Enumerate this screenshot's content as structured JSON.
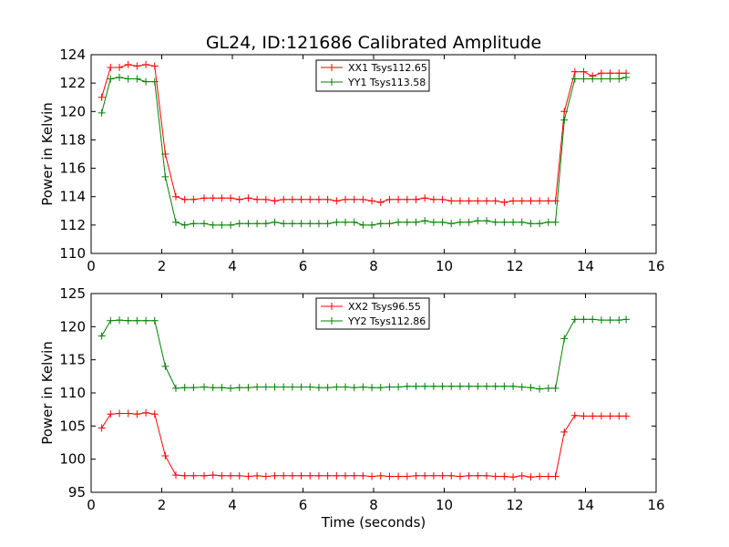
{
  "chart_data": [
    {
      "type": "line",
      "title": "GL24, ID:121686 Calibrated Amplitude",
      "xlabel": "",
      "ylabel": "Power in Kelvin",
      "xlim": [
        0,
        16
      ],
      "ylim": [
        110,
        124
      ],
      "xticks": [
        0,
        2,
        4,
        6,
        8,
        10,
        12,
        14,
        16
      ],
      "yticks": [
        110,
        112,
        114,
        116,
        118,
        120,
        122,
        124
      ],
      "grid": false,
      "legend_position": "top-center",
      "x": [
        0.3,
        0.55,
        0.8,
        1.05,
        1.3,
        1.55,
        1.8,
        2.1,
        2.4,
        2.65,
        2.9,
        3.2,
        3.45,
        3.7,
        3.95,
        4.2,
        4.45,
        4.7,
        4.95,
        5.2,
        5.45,
        5.7,
        5.95,
        6.2,
        6.45,
        6.7,
        6.95,
        7.2,
        7.45,
        7.7,
        7.95,
        8.2,
        8.45,
        8.7,
        8.95,
        9.2,
        9.45,
        9.7,
        9.95,
        10.2,
        10.45,
        10.7,
        10.95,
        11.2,
        11.45,
        11.7,
        11.95,
        12.2,
        12.45,
        12.7,
        12.95,
        13.15,
        13.4,
        13.7,
        13.95,
        14.2,
        14.45,
        14.7,
        14.95,
        15.15
      ],
      "series": [
        {
          "name": "XX1 Tsys112.65",
          "color": "#ff0000",
          "values": [
            121.0,
            123.1,
            123.1,
            123.3,
            123.2,
            123.3,
            123.2,
            117.0,
            114.0,
            113.8,
            113.8,
            113.9,
            113.9,
            113.9,
            113.9,
            113.8,
            113.9,
            113.8,
            113.8,
            113.7,
            113.8,
            113.8,
            113.8,
            113.8,
            113.8,
            113.8,
            113.7,
            113.8,
            113.8,
            113.8,
            113.7,
            113.6,
            113.8,
            113.8,
            113.8,
            113.8,
            113.9,
            113.8,
            113.8,
            113.7,
            113.7,
            113.7,
            113.7,
            113.7,
            113.7,
            113.6,
            113.7,
            113.7,
            113.7,
            113.7,
            113.7,
            113.7,
            120.0,
            122.8,
            122.8,
            122.5,
            122.7,
            122.7,
            122.7,
            122.7
          ]
        },
        {
          "name": "YY1 Tsys113.58",
          "color": "#008000",
          "values": [
            119.9,
            122.3,
            122.4,
            122.3,
            122.3,
            122.1,
            122.1,
            115.4,
            112.2,
            112.0,
            112.1,
            112.1,
            112.0,
            112.0,
            112.0,
            112.1,
            112.1,
            112.1,
            112.1,
            112.2,
            112.1,
            112.1,
            112.1,
            112.1,
            112.1,
            112.1,
            112.2,
            112.2,
            112.2,
            112.0,
            112.0,
            112.1,
            112.1,
            112.2,
            112.2,
            112.2,
            112.3,
            112.2,
            112.2,
            112.1,
            112.2,
            112.2,
            112.3,
            112.3,
            112.2,
            112.2,
            112.2,
            112.2,
            112.1,
            112.1,
            112.2,
            112.2,
            119.4,
            122.3,
            122.3,
            122.3,
            122.3,
            122.3,
            122.3,
            122.4
          ]
        }
      ]
    },
    {
      "type": "line",
      "title": "",
      "xlabel": "Time (seconds)",
      "ylabel": "Power in Kelvin",
      "xlim": [
        0,
        16
      ],
      "ylim": [
        95,
        125
      ],
      "xticks": [
        0,
        2,
        4,
        6,
        8,
        10,
        12,
        14,
        16
      ],
      "yticks": [
        95,
        100,
        105,
        110,
        115,
        120,
        125
      ],
      "grid": false,
      "legend_position": "top-center",
      "x": [
        0.3,
        0.55,
        0.8,
        1.05,
        1.3,
        1.55,
        1.8,
        2.1,
        2.4,
        2.65,
        2.9,
        3.2,
        3.45,
        3.7,
        3.95,
        4.2,
        4.45,
        4.7,
        4.95,
        5.2,
        5.45,
        5.7,
        5.95,
        6.2,
        6.45,
        6.7,
        6.95,
        7.2,
        7.45,
        7.7,
        7.95,
        8.2,
        8.45,
        8.7,
        8.95,
        9.2,
        9.45,
        9.7,
        9.95,
        10.2,
        10.45,
        10.7,
        10.95,
        11.2,
        11.45,
        11.7,
        11.95,
        12.2,
        12.45,
        12.7,
        12.95,
        13.15,
        13.4,
        13.7,
        13.95,
        14.2,
        14.45,
        14.7,
        14.95,
        15.15
      ],
      "series": [
        {
          "name": "XX2 Tsys96.55",
          "color": "#ff0000",
          "values": [
            104.7,
            106.8,
            106.9,
            106.9,
            106.8,
            107.0,
            106.8,
            100.5,
            97.6,
            97.5,
            97.5,
            97.5,
            97.6,
            97.5,
            97.5,
            97.5,
            97.4,
            97.5,
            97.4,
            97.5,
            97.5,
            97.5,
            97.5,
            97.5,
            97.5,
            97.5,
            97.5,
            97.5,
            97.5,
            97.5,
            97.4,
            97.5,
            97.4,
            97.4,
            97.4,
            97.5,
            97.5,
            97.5,
            97.5,
            97.5,
            97.4,
            97.5,
            97.5,
            97.5,
            97.4,
            97.4,
            97.3,
            97.5,
            97.3,
            97.4,
            97.4,
            97.4,
            104.1,
            106.6,
            106.5,
            106.5,
            106.5,
            106.5,
            106.5,
            106.5
          ]
        },
        {
          "name": "YY2 Tsys112.86",
          "color": "#008000",
          "values": [
            118.6,
            120.9,
            121.0,
            120.9,
            120.9,
            120.9,
            120.9,
            114.0,
            110.7,
            110.8,
            110.8,
            110.9,
            110.8,
            110.8,
            110.7,
            110.8,
            110.8,
            110.9,
            110.9,
            110.9,
            110.9,
            110.9,
            110.9,
            110.9,
            110.8,
            110.8,
            110.9,
            110.9,
            110.8,
            110.9,
            110.8,
            110.8,
            110.9,
            110.9,
            111.0,
            111.0,
            111.0,
            111.0,
            111.0,
            111.0,
            111.0,
            111.0,
            111.0,
            111.0,
            111.0,
            111.0,
            111.0,
            110.9,
            110.8,
            110.6,
            110.7,
            110.7,
            118.2,
            121.1,
            121.1,
            121.1,
            121.0,
            121.0,
            121.0,
            121.1
          ]
        }
      ]
    }
  ]
}
